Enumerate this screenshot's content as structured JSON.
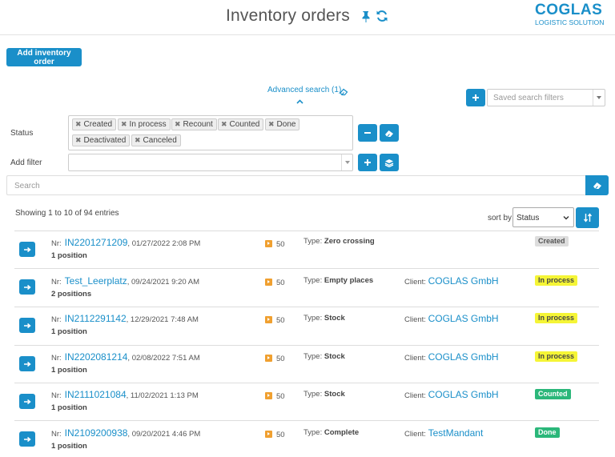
{
  "header": {
    "title": "Inventory orders",
    "logo_main": "COGLAS",
    "logo_sub": "LOGISTIC SOLUTION"
  },
  "toolbar": {
    "add_order_label": "Add inventory order"
  },
  "advanced_search": {
    "label": "Advanced search (1)",
    "saved_filters_placeholder": "Saved search filters"
  },
  "filters": {
    "status_label": "Status",
    "add_filter_label": "Add filter",
    "status_tags": [
      "Created",
      "In process",
      "Recount",
      "Counted",
      "Done",
      "Deactivated",
      "Canceled"
    ]
  },
  "search": {
    "placeholder": "Search"
  },
  "results": {
    "showing": "Showing 1 to 10 of 94 entries",
    "sort_label": "sort by",
    "sort_value": "Status"
  },
  "labels": {
    "nr": "Nr:",
    "type": "Type:",
    "client": "Client:"
  },
  "orders": [
    {
      "id": "IN2201271209",
      "date": ", 01/27/2022 2:08 PM",
      "positions": "1 position",
      "priority": "50",
      "type": "Zero crossing",
      "client": "",
      "status": "Created"
    },
    {
      "id": "Test_Leerplatz",
      "date": ", 09/24/2021 9:20 AM",
      "positions": "2 positions",
      "priority": "50",
      "type": "Empty places",
      "client": "COGLAS GmbH",
      "status": "In process"
    },
    {
      "id": "IN2112291142",
      "date": ", 12/29/2021 7:48 AM",
      "positions": "1 position",
      "priority": "50",
      "type": "Stock",
      "client": "COGLAS GmbH",
      "status": "In process"
    },
    {
      "id": "IN2202081214",
      "date": ", 02/08/2022 7:51 AM",
      "positions": "1 position",
      "priority": "50",
      "type": "Stock",
      "client": "COGLAS GmbH",
      "status": "In process"
    },
    {
      "id": "IN2111021084",
      "date": ", 11/02/2021 1:13 PM",
      "positions": "1 position",
      "priority": "50",
      "type": "Stock",
      "client": "COGLAS GmbH",
      "status": "Counted"
    },
    {
      "id": "IN2109200938",
      "date": ", 09/20/2021 4:46 PM",
      "positions": "1 position",
      "priority": "50",
      "type": "Complete",
      "client": "TestMandant",
      "status": "Done"
    }
  ],
  "colors": {
    "accent": "#1a8fc9",
    "in_process": "#f5f536",
    "done": "#2bb77a",
    "priority": "#f0a030"
  }
}
